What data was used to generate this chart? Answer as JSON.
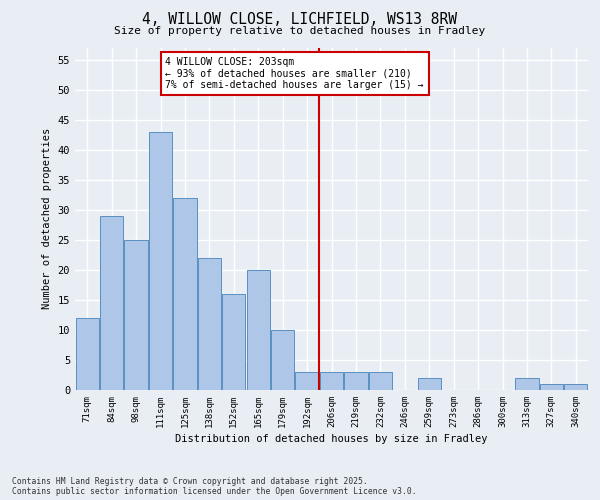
{
  "title": "4, WILLOW CLOSE, LICHFIELD, WS13 8RW",
  "subtitle": "Size of property relative to detached houses in Fradley",
  "xlabel": "Distribution of detached houses by size in Fradley",
  "ylabel": "Number of detached properties",
  "categories": [
    "71sqm",
    "84sqm",
    "98sqm",
    "111sqm",
    "125sqm",
    "138sqm",
    "152sqm",
    "165sqm",
    "179sqm",
    "192sqm",
    "206sqm",
    "219sqm",
    "232sqm",
    "246sqm",
    "259sqm",
    "273sqm",
    "286sqm",
    "300sqm",
    "313sqm",
    "327sqm",
    "340sqm"
  ],
  "values": [
    12,
    29,
    25,
    43,
    32,
    22,
    16,
    20,
    10,
    3,
    3,
    3,
    3,
    0,
    2,
    0,
    0,
    0,
    2,
    1,
    1
  ],
  "bar_color": "#aec6e8",
  "bar_edge_color": "#5a8fc0",
  "background_color": "#e8eef4",
  "grid_color": "#ffffff",
  "vline_x": 9.5,
  "vline_color": "#cc0000",
  "annotation_text": "4 WILLOW CLOSE: 203sqm\n← 93% of detached houses are smaller (210)\n7% of semi-detached houses are larger (15) →",
  "annotation_box_color": "#cc0000",
  "ylim": [
    0,
    57
  ],
  "yticks": [
    0,
    5,
    10,
    15,
    20,
    25,
    30,
    35,
    40,
    45,
    50,
    55
  ],
  "footer": "Contains HM Land Registry data © Crown copyright and database right 2025.\nContains public sector information licensed under the Open Government Licence v3.0."
}
